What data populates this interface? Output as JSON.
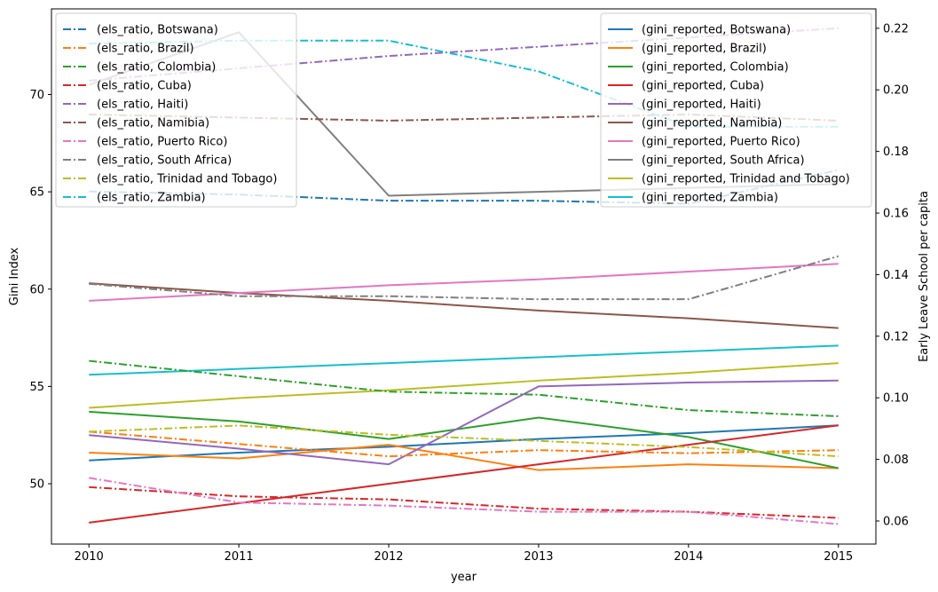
{
  "chart_data": {
    "type": "line",
    "x": [
      2010,
      2011,
      2012,
      2013,
      2014,
      2015
    ],
    "xlabel": "year",
    "ylabel": "Gini Index",
    "ylabel_right": "Early Leave School per capita",
    "xlim": [
      2009.75,
      2015.25
    ],
    "ylim": [
      46.9,
      74.4
    ],
    "ylim_right": [
      0.0525,
      0.2263
    ],
    "xticks": [
      "2010",
      "2011",
      "2012",
      "2013",
      "2014",
      "2015"
    ],
    "yticks": [
      "50",
      "55",
      "60",
      "65",
      "70"
    ],
    "yticks_right": [
      "0.06",
      "0.08",
      "0.10",
      "0.12",
      "0.14",
      "0.16",
      "0.18",
      "0.20",
      "0.22"
    ],
    "grid": false,
    "legend_left_placement": "upper-left",
    "legend_right_placement": "upper-right",
    "gini_series": [
      {
        "name": "(gini_reported, Botswana)",
        "color": "#1f77b4",
        "values": [
          51.2,
          51.6,
          51.9,
          52.3,
          52.6,
          53.0
        ]
      },
      {
        "name": "(gini_reported, Brazil)",
        "color": "#ff7f0e",
        "values": [
          51.6,
          51.3,
          52.0,
          50.7,
          51.0,
          50.8
        ]
      },
      {
        "name": "(gini_reported, Colombia)",
        "color": "#2ca02c",
        "values": [
          53.7,
          53.2,
          52.3,
          53.4,
          52.4,
          50.8
        ]
      },
      {
        "name": "(gini_reported, Cuba)",
        "color": "#d62728",
        "values": [
          48.0,
          49.0,
          50.0,
          51.0,
          52.0,
          53.0
        ]
      },
      {
        "name": "(gini_reported, Haiti)",
        "color": "#9467bd",
        "values": [
          52.5,
          51.8,
          51.0,
          55.0,
          55.2,
          55.3
        ]
      },
      {
        "name": "(gini_reported, Namibia)",
        "color": "#8c564b",
        "values": [
          60.3,
          59.8,
          59.4,
          58.9,
          58.5,
          58.0
        ]
      },
      {
        "name": "(gini_reported, Puerto Rico)",
        "color": "#e377c2",
        "values": [
          59.4,
          59.8,
          60.2,
          60.5,
          60.9,
          61.3
        ]
      },
      {
        "name": "(gini_reported, South Africa)",
        "color": "#7f7f7f",
        "values": [
          70.5,
          73.2,
          64.8,
          65.0,
          65.2,
          65.4
        ]
      },
      {
        "name": "(gini_reported, Trinidad and Tobago)",
        "color": "#bcbd22",
        "values": [
          53.9,
          54.4,
          54.8,
          55.3,
          55.7,
          56.2
        ]
      },
      {
        "name": "(gini_reported, Zambia)",
        "color": "#17becf",
        "values": [
          55.6,
          55.9,
          56.2,
          56.5,
          56.8,
          57.1
        ]
      }
    ],
    "els_series": [
      {
        "name": "(els_ratio, Botswana)",
        "color": "#1f77b4",
        "values": [
          0.167,
          0.166,
          0.164,
          0.164,
          0.163,
          0.174
        ]
      },
      {
        "name": "(els_ratio, Brazil)",
        "color": "#ff7f0e",
        "values": [
          0.089,
          0.085,
          0.081,
          0.083,
          0.082,
          0.083
        ]
      },
      {
        "name": "(els_ratio, Colombia)",
        "color": "#2ca02c",
        "values": [
          0.112,
          0.107,
          0.102,
          0.101,
          0.096,
          0.094
        ]
      },
      {
        "name": "(els_ratio, Cuba)",
        "color": "#d62728",
        "values": [
          0.071,
          0.068,
          0.067,
          0.064,
          0.063,
          0.061
        ]
      },
      {
        "name": "(els_ratio, Haiti)",
        "color": "#9467bd",
        "values": [
          0.203,
          0.207,
          0.211,
          0.214,
          0.217,
          0.22
        ]
      },
      {
        "name": "(els_ratio, Namibia)",
        "color": "#8c564b",
        "values": [
          0.192,
          0.191,
          0.19,
          0.191,
          0.192,
          0.19
        ]
      },
      {
        "name": "(els_ratio, Puerto Rico)",
        "color": "#e377c2",
        "values": [
          0.074,
          0.066,
          0.065,
          0.063,
          0.063,
          0.059
        ]
      },
      {
        "name": "(els_ratio, South Africa)",
        "color": "#7f7f7f",
        "values": [
          0.137,
          0.133,
          0.133,
          0.132,
          0.132,
          0.146
        ]
      },
      {
        "name": "(els_ratio, Trinidad and Tobago)",
        "color": "#bcbd22",
        "values": [
          0.089,
          0.091,
          0.088,
          0.086,
          0.084,
          0.081
        ]
      },
      {
        "name": "(els_ratio, Zambia)",
        "color": "#17becf",
        "values": [
          0.215,
          0.216,
          0.216,
          0.206,
          0.188,
          0.188
        ]
      }
    ]
  }
}
